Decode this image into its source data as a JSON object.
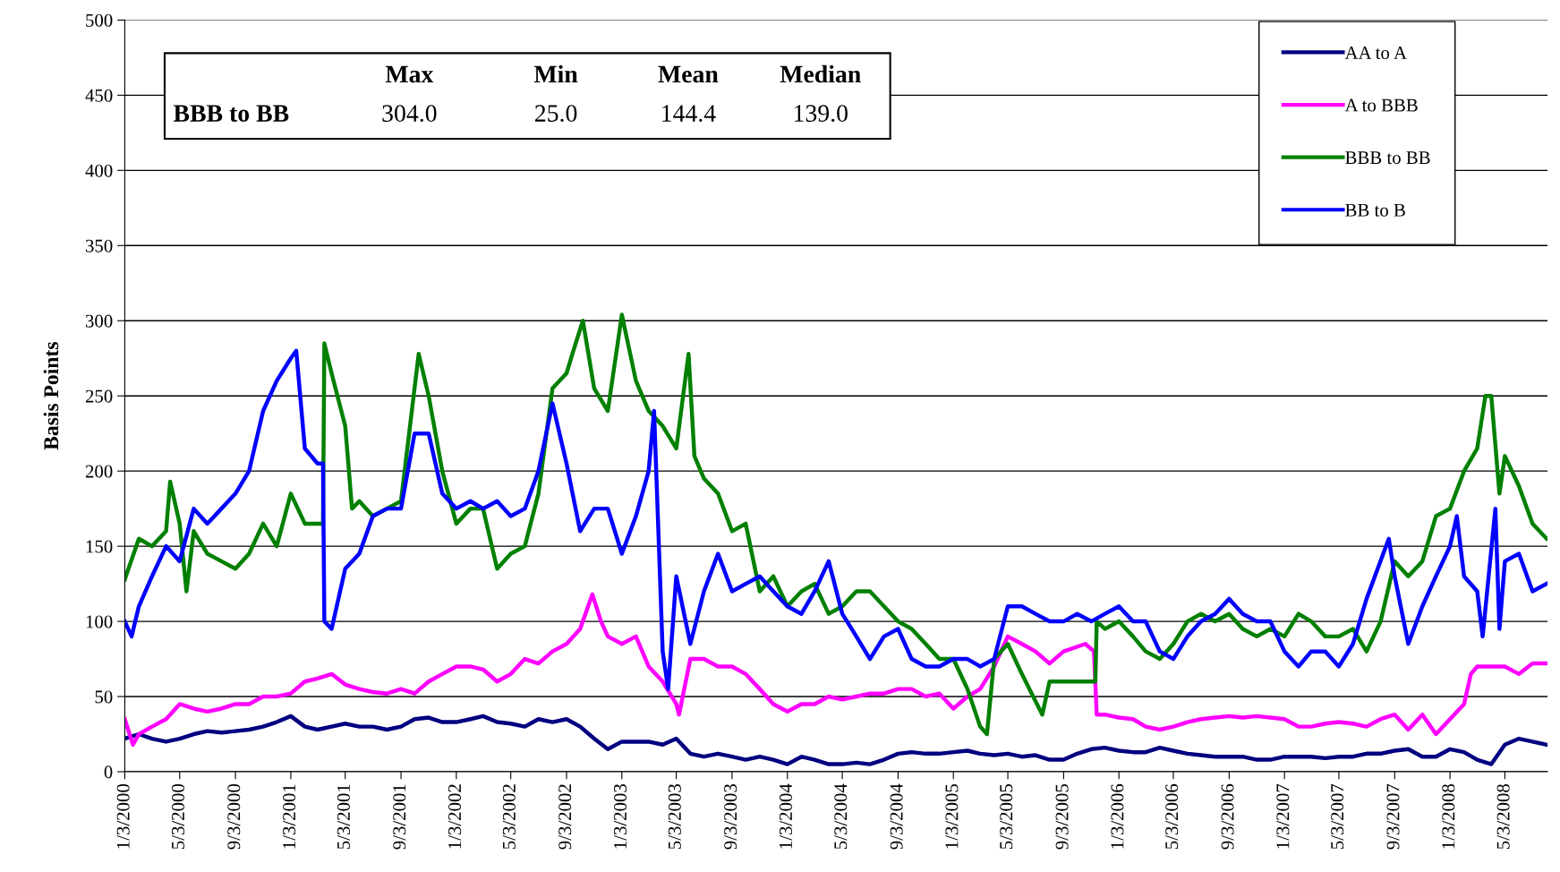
{
  "chart_data": {
    "type": "line",
    "ylabel": "Basis Points",
    "xlim": [
      "2000-01-03",
      "2008-08-05"
    ],
    "ylim": [
      0,
      500
    ],
    "yticks": [
      0,
      50,
      100,
      150,
      200,
      250,
      300,
      350,
      400,
      450,
      500
    ],
    "xticks": [
      {
        "value": "2000-01-03",
        "label": "1/3/2000"
      },
      {
        "value": "2000-05-03",
        "label": "5/3/2000"
      },
      {
        "value": "2000-09-03",
        "label": "9/3/2000"
      },
      {
        "value": "2001-01-03",
        "label": "1/3/2001"
      },
      {
        "value": "2001-05-03",
        "label": "5/3/2001"
      },
      {
        "value": "2001-09-03",
        "label": "9/3/2001"
      },
      {
        "value": "2002-01-03",
        "label": "1/3/2002"
      },
      {
        "value": "2002-05-03",
        "label": "5/3/2002"
      },
      {
        "value": "2002-09-03",
        "label": "9/3/2002"
      },
      {
        "value": "2003-01-03",
        "label": "1/3/2003"
      },
      {
        "value": "2003-05-03",
        "label": "5/3/2003"
      },
      {
        "value": "2003-09-03",
        "label": "9/3/2003"
      },
      {
        "value": "2004-01-03",
        "label": "1/3/2004"
      },
      {
        "value": "2004-05-03",
        "label": "5/3/2004"
      },
      {
        "value": "2004-09-03",
        "label": "9/3/2004"
      },
      {
        "value": "2005-01-03",
        "label": "1/3/2005"
      },
      {
        "value": "2005-05-03",
        "label": "5/3/2005"
      },
      {
        "value": "2005-09-03",
        "label": "9/3/2005"
      },
      {
        "value": "2006-01-03",
        "label": "1/3/2006"
      },
      {
        "value": "2006-05-03",
        "label": "5/3/2006"
      },
      {
        "value": "2006-09-03",
        "label": "9/3/2006"
      },
      {
        "value": "2007-01-03",
        "label": "1/3/2007"
      },
      {
        "value": "2007-05-03",
        "label": "5/3/2007"
      },
      {
        "value": "2007-09-03",
        "label": "9/3/2007"
      },
      {
        "value": "2008-01-03",
        "label": "1/3/2008"
      },
      {
        "value": "2008-05-03",
        "label": "5/3/2008"
      }
    ],
    "grid": "y",
    "legend": "top right",
    "line_style": "solid",
    "marker": "none",
    "annotations": [
      "Max",
      "Min",
      "Mean",
      "Median",
      "BBB to BB",
      "304.0",
      "25.0",
      "144.4",
      "139.0"
    ],
    "series": [
      {
        "name": "AA to A",
        "color": "#000080",
        "x": [
          "2000-01-03",
          "2000-02-03",
          "2000-03-03",
          "2000-04-03",
          "2000-05-03",
          "2000-06-03",
          "2000-07-03",
          "2000-08-03",
          "2000-09-03",
          "2000-10-03",
          "2000-11-03",
          "2000-12-03",
          "2001-01-03",
          "2001-02-03",
          "2001-03-03",
          "2001-04-03",
          "2001-05-03",
          "2001-06-03",
          "2001-07-03",
          "2001-08-03",
          "2001-09-03",
          "2001-10-03",
          "2001-11-03",
          "2001-12-03",
          "2002-01-03",
          "2002-02-03",
          "2002-03-03",
          "2002-04-03",
          "2002-05-03",
          "2002-06-03",
          "2002-07-03",
          "2002-08-03",
          "2002-09-03",
          "2002-10-03",
          "2002-11-03",
          "2002-12-03",
          "2003-01-03",
          "2003-02-03",
          "2003-03-03",
          "2003-04-03",
          "2003-05-03",
          "2003-06-03",
          "2003-07-03",
          "2003-08-03",
          "2003-09-03",
          "2003-10-03",
          "2003-11-03",
          "2003-12-03",
          "2004-01-03",
          "2004-02-03",
          "2004-03-03",
          "2004-04-03",
          "2004-05-03",
          "2004-06-03",
          "2004-07-03",
          "2004-08-03",
          "2004-09-03",
          "2004-10-03",
          "2004-11-03",
          "2004-12-03",
          "2005-01-03",
          "2005-02-03",
          "2005-03-03",
          "2005-04-03",
          "2005-05-03",
          "2005-06-03",
          "2005-07-03",
          "2005-08-03",
          "2005-09-03",
          "2005-10-03",
          "2005-11-03",
          "2005-12-03",
          "2006-01-03",
          "2006-02-03",
          "2006-03-03",
          "2006-04-03",
          "2006-05-03",
          "2006-06-03",
          "2006-07-03",
          "2006-08-03",
          "2006-09-03",
          "2006-10-03",
          "2006-11-03",
          "2006-12-03",
          "2007-01-03",
          "2007-02-03",
          "2007-03-03",
          "2007-04-03",
          "2007-05-03",
          "2007-06-03",
          "2007-07-03",
          "2007-08-03",
          "2007-09-03",
          "2007-10-03",
          "2007-11-03",
          "2007-12-03",
          "2008-01-03",
          "2008-02-03",
          "2008-03-03",
          "2008-04-03",
          "2008-05-03",
          "2008-06-03",
          "2008-07-03",
          "2008-08-03"
        ],
        "values": [
          22,
          25,
          22,
          20,
          22,
          25,
          27,
          26,
          27,
          28,
          30,
          33,
          37,
          30,
          28,
          30,
          32,
          30,
          30,
          28,
          30,
          35,
          36,
          33,
          33,
          35,
          37,
          33,
          32,
          30,
          35,
          33,
          35,
          30,
          22,
          15,
          20,
          20,
          20,
          18,
          22,
          12,
          10,
          12,
          10,
          8,
          10,
          8,
          5,
          10,
          8,
          5,
          5,
          6,
          5,
          8,
          12,
          13,
          12,
          12,
          13,
          14,
          12,
          11,
          12,
          10,
          11,
          8,
          8,
          12,
          15,
          16,
          14,
          13,
          13,
          16,
          14,
          12,
          11,
          10,
          10,
          10,
          8,
          8,
          10,
          10,
          10,
          9,
          10,
          10,
          12,
          12,
          14,
          15,
          10,
          10,
          15,
          13,
          8,
          5,
          18,
          22,
          20,
          18
        ]
      },
      {
        "name": "A to BBB",
        "color": "#ff00ff",
        "x": [
          "2000-01-03",
          "2000-01-21",
          "2000-02-03",
          "2000-03-03",
          "2000-04-03",
          "2000-05-03",
          "2000-06-03",
          "2000-07-03",
          "2000-08-03",
          "2000-09-03",
          "2000-10-03",
          "2000-11-03",
          "2000-12-03",
          "2001-01-03",
          "2001-02-03",
          "2001-03-03",
          "2001-04-03",
          "2001-05-03",
          "2001-06-03",
          "2001-07-03",
          "2001-08-03",
          "2001-09-03",
          "2001-10-03",
          "2001-11-03",
          "2001-12-03",
          "2002-01-03",
          "2002-02-03",
          "2002-03-03",
          "2002-04-03",
          "2002-05-03",
          "2002-06-03",
          "2002-07-03",
          "2002-08-03",
          "2002-09-03",
          "2002-10-03",
          "2002-10-30",
          "2002-11-18",
          "2002-12-03",
          "2003-01-03",
          "2003-02-03",
          "2003-03-03",
          "2003-04-03",
          "2003-05-03",
          "2003-05-09",
          "2003-06-03",
          "2003-07-03",
          "2003-08-03",
          "2003-09-03",
          "2003-10-03",
          "2003-11-03",
          "2003-12-03",
          "2004-01-03",
          "2004-02-03",
          "2004-03-03",
          "2004-04-03",
          "2004-05-03",
          "2004-06-03",
          "2004-07-03",
          "2004-08-03",
          "2004-09-03",
          "2004-10-03",
          "2004-11-03",
          "2004-12-03",
          "2005-01-03",
          "2005-02-03",
          "2005-03-03",
          "2005-04-03",
          "2005-05-03",
          "2005-06-03",
          "2005-07-03",
          "2005-08-03",
          "2005-09-03",
          "2005-10-21",
          "2005-11-09",
          "2005-11-15",
          "2005-12-03",
          "2006-01-03",
          "2006-02-03",
          "2006-03-03",
          "2006-04-03",
          "2006-05-03",
          "2006-06-03",
          "2006-07-03",
          "2006-08-03",
          "2006-09-03",
          "2006-10-03",
          "2006-11-03",
          "2006-12-03",
          "2007-01-03",
          "2007-02-03",
          "2007-03-03",
          "2007-04-03",
          "2007-05-03",
          "2007-06-03",
          "2007-07-03",
          "2007-08-03",
          "2007-09-03",
          "2007-10-03",
          "2007-11-03",
          "2007-12-03",
          "2008-01-03",
          "2008-02-03",
          "2008-02-18",
          "2008-03-03",
          "2008-04-03",
          "2008-05-03",
          "2008-06-03",
          "2008-07-03",
          "2008-08-03"
        ],
        "values": [
          35,
          18,
          25,
          30,
          35,
          45,
          42,
          40,
          42,
          45,
          45,
          50,
          50,
          52,
          60,
          62,
          65,
          58,
          55,
          53,
          52,
          55,
          52,
          60,
          65,
          70,
          70,
          68,
          60,
          65,
          75,
          72,
          80,
          85,
          95,
          118,
          100,
          90,
          85,
          90,
          70,
          60,
          45,
          38,
          75,
          75,
          70,
          70,
          65,
          55,
          45,
          40,
          45,
          45,
          50,
          48,
          50,
          52,
          52,
          55,
          55,
          50,
          52,
          42,
          50,
          55,
          70,
          90,
          85,
          80,
          72,
          80,
          85,
          80,
          38,
          38,
          36,
          35,
          30,
          28,
          30,
          33,
          35,
          36,
          37,
          36,
          37,
          36,
          35,
          30,
          30,
          32,
          33,
          32,
          30,
          35,
          38,
          28,
          38,
          25,
          35,
          45,
          65,
          70,
          70,
          70,
          65,
          72,
          72
        ]
      },
      {
        "name": "BBB to BB",
        "color": "#008000",
        "x": [
          "2000-01-03",
          "2000-02-03",
          "2000-03-03",
          "2000-04-03",
          "2000-04-12",
          "2000-05-03",
          "2000-05-18",
          "2000-06-03",
          "2000-07-03",
          "2000-08-03",
          "2000-09-03",
          "2000-10-03",
          "2000-11-03",
          "2000-12-03",
          "2001-01-03",
          "2001-02-03",
          "2001-03-03",
          "2001-03-15",
          "2001-03-18",
          "2001-04-03",
          "2001-05-03",
          "2001-05-18",
          "2001-06-03",
          "2001-07-03",
          "2001-08-03",
          "2001-09-03",
          "2001-10-12",
          "2001-11-03",
          "2001-12-03",
          "2002-01-03",
          "2002-02-03",
          "2002-03-03",
          "2002-04-03",
          "2002-05-03",
          "2002-06-03",
          "2002-07-03",
          "2002-08-03",
          "2002-09-03",
          "2002-09-18",
          "2002-10-09",
          "2002-11-03",
          "2002-12-03",
          "2003-01-03",
          "2003-02-03",
          "2003-03-03",
          "2003-04-03",
          "2003-05-03",
          "2003-05-30",
          "2003-06-12",
          "2003-07-03",
          "2003-08-03",
          "2003-09-03",
          "2003-10-03",
          "2003-11-03",
          "2003-12-03",
          "2004-01-03",
          "2004-02-03",
          "2004-03-03",
          "2004-04-03",
          "2004-05-03",
          "2004-06-03",
          "2004-07-03",
          "2004-08-03",
          "2004-09-03",
          "2004-10-03",
          "2004-11-03",
          "2004-12-03",
          "2005-01-03",
          "2005-02-03",
          "2005-03-03",
          "2005-03-18",
          "2005-04-03",
          "2005-05-03",
          "2005-06-03",
          "2005-07-18",
          "2005-08-03",
          "2005-09-03",
          "2005-10-03",
          "2005-11-03",
          "2005-11-12",
          "2005-11-15",
          "2005-12-03",
          "2006-01-03",
          "2006-02-03",
          "2006-03-03",
          "2006-04-03",
          "2006-05-03",
          "2006-06-03",
          "2006-07-03",
          "2006-08-03",
          "2006-09-03",
          "2006-10-03",
          "2006-11-03",
          "2006-12-03",
          "2007-01-03",
          "2007-02-03",
          "2007-03-03",
          "2007-04-03",
          "2007-05-03",
          "2007-06-03",
          "2007-07-03",
          "2007-08-03",
          "2007-09-03",
          "2007-10-03",
          "2007-11-03",
          "2007-12-03",
          "2008-01-03",
          "2008-02-03",
          "2008-03-03",
          "2008-03-21",
          "2008-04-03",
          "2008-04-21",
          "2008-05-03",
          "2008-06-03",
          "2008-07-03",
          "2008-08-03"
        ],
        "values": [
          128,
          155,
          150,
          160,
          193,
          165,
          120,
          160,
          145,
          140,
          135,
          145,
          165,
          150,
          185,
          165,
          165,
          165,
          285,
          265,
          230,
          175,
          180,
          170,
          175,
          180,
          278,
          250,
          200,
          165,
          175,
          175,
          135,
          145,
          150,
          185,
          255,
          265,
          280,
          300,
          255,
          240,
          304,
          260,
          240,
          230,
          215,
          278,
          210,
          195,
          185,
          160,
          165,
          120,
          130,
          110,
          120,
          125,
          105,
          110,
          120,
          120,
          110,
          100,
          95,
          85,
          75,
          75,
          55,
          30,
          25,
          75,
          85,
          65,
          38,
          60,
          60,
          60,
          60,
          60,
          100,
          95,
          100,
          90,
          80,
          75,
          85,
          100,
          105,
          100,
          105,
          95,
          90,
          95,
          90,
          105,
          100,
          90,
          90,
          95,
          80,
          100,
          140,
          130,
          140,
          170,
          175,
          200,
          215,
          250,
          250,
          185,
          210,
          190,
          165,
          155
        ]
      },
      {
        "name": "BB to B",
        "color": "#0000ff",
        "x": [
          "2000-01-03",
          "2000-01-18",
          "2000-02-03",
          "2000-03-03",
          "2000-04-03",
          "2000-05-03",
          "2000-06-03",
          "2000-07-03",
          "2000-08-03",
          "2000-09-03",
          "2000-10-03",
          "2000-11-03",
          "2000-12-03",
          "2001-01-03",
          "2001-01-15",
          "2001-02-03",
          "2001-03-03",
          "2001-03-15",
          "2001-03-18",
          "2001-04-03",
          "2001-05-03",
          "2001-06-03",
          "2001-07-03",
          "2001-08-03",
          "2001-09-03",
          "2001-10-03",
          "2001-11-03",
          "2001-12-03",
          "2002-01-03",
          "2002-02-03",
          "2002-03-03",
          "2002-04-03",
          "2002-05-03",
          "2002-06-03",
          "2002-07-03",
          "2002-08-03",
          "2002-09-03",
          "2002-10-03",
          "2002-11-03",
          "2002-12-03",
          "2003-01-03",
          "2003-02-03",
          "2003-03-03",
          "2003-03-15",
          "2003-04-03",
          "2003-04-15",
          "2003-05-03",
          "2003-06-03",
          "2003-07-03",
          "2003-08-03",
          "2003-09-03",
          "2003-10-03",
          "2003-11-03",
          "2003-12-03",
          "2004-01-03",
          "2004-02-03",
          "2004-03-03",
          "2004-04-03",
          "2004-05-03",
          "2004-06-03",
          "2004-07-03",
          "2004-08-03",
          "2004-09-03",
          "2004-10-03",
          "2004-11-03",
          "2004-12-03",
          "2005-01-03",
          "2005-02-03",
          "2005-03-03",
          "2005-04-03",
          "2005-05-03",
          "2005-06-03",
          "2005-07-03",
          "2005-08-03",
          "2005-09-03",
          "2005-10-03",
          "2005-11-03",
          "2005-12-03",
          "2006-01-03",
          "2006-02-03",
          "2006-03-03",
          "2006-04-03",
          "2006-05-03",
          "2006-06-03",
          "2006-07-03",
          "2006-08-03",
          "2006-09-03",
          "2006-10-03",
          "2006-11-03",
          "2006-12-03",
          "2007-01-03",
          "2007-02-03",
          "2007-03-03",
          "2007-04-03",
          "2007-05-03",
          "2007-06-03",
          "2007-07-03",
          "2007-08-21",
          "2007-09-03",
          "2007-10-03",
          "2007-11-03",
          "2007-12-03",
          "2008-01-03",
          "2008-01-18",
          "2008-02-03",
          "2008-03-03",
          "2008-03-15",
          "2008-04-12",
          "2008-04-21",
          "2008-05-03",
          "2008-06-03",
          "2008-07-03",
          "2008-08-03"
        ],
        "values": [
          100,
          90,
          110,
          130,
          150,
          140,
          175,
          165,
          175,
          185,
          200,
          240,
          260,
          275,
          280,
          215,
          205,
          205,
          100,
          95,
          135,
          145,
          170,
          175,
          175,
          225,
          225,
          185,
          175,
          180,
          175,
          180,
          170,
          175,
          200,
          245,
          205,
          160,
          175,
          175,
          145,
          170,
          200,
          240,
          80,
          55,
          130,
          85,
          120,
          145,
          120,
          125,
          130,
          120,
          110,
          105,
          120,
          140,
          105,
          90,
          75,
          90,
          95,
          75,
          70,
          70,
          75,
          75,
          70,
          75,
          110,
          110,
          105,
          100,
          100,
          105,
          100,
          105,
          110,
          100,
          100,
          80,
          75,
          90,
          100,
          105,
          115,
          105,
          100,
          100,
          80,
          70,
          80,
          80,
          70,
          85,
          115,
          155,
          130,
          85,
          110,
          130,
          150,
          170,
          130,
          120,
          90,
          175,
          95,
          140,
          145,
          120,
          125
        ]
      }
    ]
  }
}
